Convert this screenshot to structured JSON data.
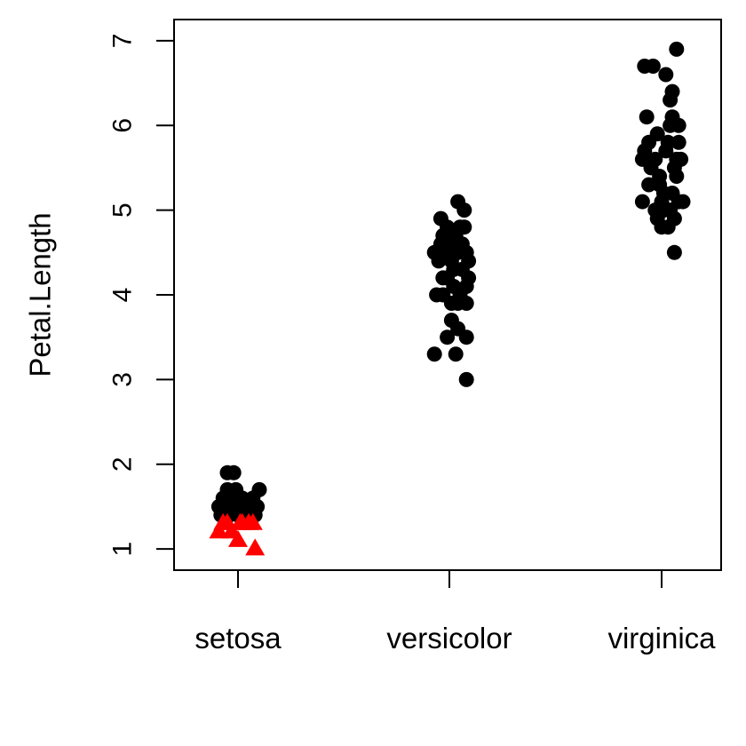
{
  "chart_data": {
    "type": "scatter",
    "title": "",
    "xlabel": "",
    "ylabel": "Petal.Length",
    "ylim": [
      0.75,
      7.25
    ],
    "yticks": [
      "1",
      "2",
      "3",
      "4",
      "5",
      "6",
      "7"
    ],
    "categories": [
      "setosa",
      "versicolor",
      "virginica"
    ],
    "grid": false,
    "legend": "none",
    "colors": {
      "default": "#000000",
      "highlight": "#ff0000"
    },
    "series": [
      {
        "marker": "circle",
        "color": "#000000",
        "points": [
          [
            "setosa",
            -0.09,
            1.5
          ],
          [
            "setosa",
            -0.05,
            1.7
          ],
          [
            "setosa",
            -0.05,
            1.9
          ],
          [
            "setosa",
            -0.02,
            1.9
          ],
          [
            "setosa",
            -0.01,
            1.7
          ],
          [
            "setosa",
            -0.03,
            1.6
          ],
          [
            "setosa",
            -0.07,
            1.6
          ],
          [
            "setosa",
            0.0,
            1.5
          ],
          [
            "setosa",
            0.04,
            1.5
          ],
          [
            "setosa",
            0.07,
            1.6
          ],
          [
            "setosa",
            0.09,
            1.5
          ],
          [
            "setosa",
            0.1,
            1.7
          ],
          [
            "setosa",
            0.02,
            1.6
          ],
          [
            "setosa",
            -0.06,
            1.5
          ],
          [
            "setosa",
            0.05,
            1.4
          ],
          [
            "setosa",
            0.0,
            1.4
          ],
          [
            "setosa",
            0.08,
            1.4
          ],
          [
            "setosa",
            -0.08,
            1.4
          ],
          [
            "setosa",
            0.03,
            1.5
          ],
          [
            "setosa",
            -0.04,
            1.4
          ],
          [
            "versicolor",
            -0.07,
            4.5
          ],
          [
            "versicolor",
            -0.05,
            4.4
          ],
          [
            "versicolor",
            -0.04,
            4.9
          ],
          [
            "versicolor",
            -0.03,
            4.7
          ],
          [
            "versicolor",
            -0.02,
            4.5
          ],
          [
            "versicolor",
            -0.01,
            4.2
          ],
          [
            "versicolor",
            0.0,
            4.6
          ],
          [
            "versicolor",
            0.01,
            4.4
          ],
          [
            "versicolor",
            0.02,
            4.1
          ],
          [
            "versicolor",
            0.03,
            4.7
          ],
          [
            "versicolor",
            0.04,
            4.5
          ],
          [
            "versicolor",
            0.05,
            4.8
          ],
          [
            "versicolor",
            0.06,
            4.6
          ],
          [
            "versicolor",
            0.07,
            4.8
          ],
          [
            "versicolor",
            0.08,
            4.5
          ],
          [
            "versicolor",
            0.09,
            4.4
          ],
          [
            "versicolor",
            0.04,
            5.1
          ],
          [
            "versicolor",
            0.07,
            5.0
          ],
          [
            "versicolor",
            -0.06,
            4.0
          ],
          [
            "versicolor",
            -0.03,
            4.2
          ],
          [
            "versicolor",
            -0.07,
            3.3
          ],
          [
            "versicolor",
            0.03,
            3.3
          ],
          [
            "versicolor",
            0.08,
            3.0
          ],
          [
            "versicolor",
            -0.01,
            3.5
          ],
          [
            "versicolor",
            0.08,
            3.5
          ],
          [
            "versicolor",
            0.01,
            3.7
          ],
          [
            "versicolor",
            0.04,
            3.6
          ],
          [
            "versicolor",
            0.01,
            3.9
          ],
          [
            "versicolor",
            0.04,
            3.9
          ],
          [
            "versicolor",
            0.08,
            3.9
          ],
          [
            "versicolor",
            0.08,
            4.1
          ],
          [
            "versicolor",
            0.05,
            4.0
          ],
          [
            "versicolor",
            0.06,
            4.3
          ],
          [
            "versicolor",
            0.09,
            4.2
          ],
          [
            "versicolor",
            -0.03,
            4.0
          ],
          [
            "versicolor",
            -0.04,
            4.6
          ],
          [
            "versicolor",
            0.02,
            4.3
          ],
          [
            "versicolor",
            -0.01,
            4.8
          ],
          [
            "virginica",
            -0.09,
            5.6
          ],
          [
            "virginica",
            -0.08,
            5.7
          ],
          [
            "virginica",
            -0.07,
            6.1
          ],
          [
            "virginica",
            -0.06,
            5.8
          ],
          [
            "virginica",
            -0.05,
            5.5
          ],
          [
            "virginica",
            -0.04,
            6.7
          ],
          [
            "virginica",
            -0.08,
            6.7
          ],
          [
            "virginica",
            -0.03,
            5.6
          ],
          [
            "virginica",
            -0.02,
            5.9
          ],
          [
            "virginica",
            -0.01,
            5.3
          ],
          [
            "virginica",
            0.0,
            5.1
          ],
          [
            "virginica",
            0.01,
            5.0
          ],
          [
            "virginica",
            0.02,
            5.7
          ],
          [
            "virginica",
            0.03,
            5.8
          ],
          [
            "virginica",
            0.04,
            6.3
          ],
          [
            "virginica",
            0.05,
            6.1
          ],
          [
            "virginica",
            0.06,
            5.5
          ],
          [
            "virginica",
            0.07,
            5.6
          ],
          [
            "virginica",
            0.08,
            6.0
          ],
          [
            "virginica",
            0.09,
            5.6
          ],
          [
            "virginica",
            0.1,
            5.1
          ],
          [
            "virginica",
            0.02,
            6.6
          ],
          [
            "virginica",
            0.04,
            6.0
          ],
          [
            "virginica",
            0.05,
            6.4
          ],
          [
            "virginica",
            0.07,
            5.4
          ],
          [
            "virginica",
            0.08,
            5.8
          ],
          [
            "virginica",
            -0.09,
            5.1
          ],
          [
            "virginica",
            -0.03,
            5.0
          ],
          [
            "virginica",
            -0.02,
            4.9
          ],
          [
            "virginica",
            0.0,
            4.8
          ],
          [
            "virginica",
            0.03,
            4.8
          ],
          [
            "virginica",
            0.04,
            5.0
          ],
          [
            "virginica",
            0.06,
            4.9
          ],
          [
            "virginica",
            0.06,
            4.5
          ],
          [
            "virginica",
            0.07,
            6.9
          ],
          [
            "virginica",
            0.05,
            5.2
          ],
          [
            "virginica",
            -0.06,
            5.3
          ],
          [
            "virginica",
            -0.01,
            5.4
          ],
          [
            "virginica",
            0.01,
            5.2
          ],
          [
            "virginica",
            0.08,
            5.1
          ]
        ]
      },
      {
        "marker": "triangle",
        "color": "#ff0000",
        "points": [
          [
            "setosa",
            -0.09,
            1.2
          ],
          [
            "setosa",
            -0.07,
            1.3
          ],
          [
            "setosa",
            -0.05,
            1.3
          ],
          [
            "setosa",
            -0.03,
            1.2
          ],
          [
            "setosa",
            0.0,
            1.1
          ],
          [
            "setosa",
            0.01,
            1.3
          ],
          [
            "setosa",
            0.02,
            1.3
          ],
          [
            "setosa",
            0.05,
            1.3
          ],
          [
            "setosa",
            0.07,
            1.3
          ],
          [
            "setosa",
            0.08,
            1.0
          ]
        ]
      }
    ]
  }
}
